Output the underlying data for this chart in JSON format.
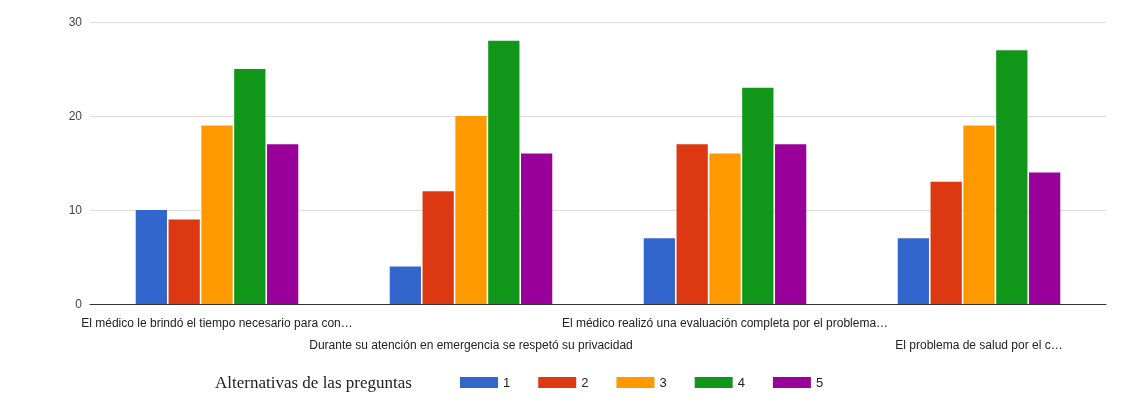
{
  "chart_data": {
    "type": "bar",
    "legend_title": "Alternativas de las preguntas",
    "categories": [
      "El médico le brindó el tiempo necesario para con…",
      "Durante su atención en emergencia se respetó su privacidad",
      "El médico realizó una evaluación completa por el problema…",
      "El problema de salud por el c…"
    ],
    "series": [
      {
        "name": "1",
        "color": "#3366cc",
        "values": [
          10,
          4,
          7,
          7
        ]
      },
      {
        "name": "2",
        "color": "#dc3912",
        "values": [
          9,
          12,
          17,
          13
        ]
      },
      {
        "name": "3",
        "color": "#ff9900",
        "values": [
          19,
          20,
          16,
          19
        ]
      },
      {
        "name": "4",
        "color": "#109618",
        "values": [
          25,
          28,
          23,
          27
        ]
      },
      {
        "name": "5",
        "color": "#990099",
        "values": [
          17,
          16,
          17,
          14
        ]
      }
    ],
    "ylim": [
      0,
      30
    ],
    "yticks": [
      0,
      10,
      20,
      30
    ],
    "grid": "y",
    "legend": "bottom"
  }
}
